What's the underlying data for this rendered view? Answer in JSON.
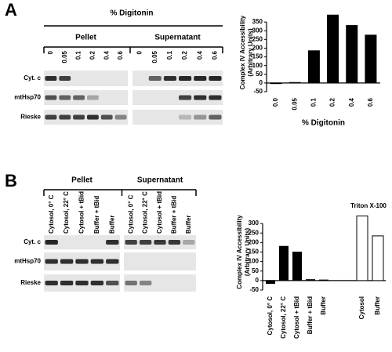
{
  "panel_a": {
    "label": "A",
    "title": "% Digitonin",
    "groups": [
      {
        "name": "Pellet",
        "lanes": [
          "0",
          "0.05",
          "0.1",
          "0.2",
          "0.4",
          "0.6"
        ]
      },
      {
        "name": "Supernatant",
        "lanes": [
          "0",
          "0.05",
          "0.1",
          "0.2",
          "0.4",
          "0.6"
        ]
      }
    ],
    "rows": [
      "Cyt. c",
      "mtHsp70",
      "Rieske"
    ]
  },
  "panel_b": {
    "label": "B",
    "groups": [
      {
        "name": "Pellet",
        "lanes": [
          "Cytosol, 0° C",
          "Cytosol, 22° C",
          "Cytosol + tBid",
          "Buffer + tBid",
          "Buffer"
        ]
      },
      {
        "name": "Supernatant",
        "lanes": [
          "Cytosol, 0° C",
          "Cytosol, 22° C",
          "Cytosol + tBid",
          "Buffer + tBid",
          "Buffer"
        ]
      }
    ],
    "rows": [
      "Cyt. c",
      "mtHsp70",
      "Rieske"
    ]
  },
  "chart_data": [
    {
      "type": "bar",
      "y_label": [
        "Complex IV Accessibility",
        "(Arbitrary Units)"
      ],
      "x_label": "% Digitonin",
      "categories": [
        "0.0",
        "0.05",
        "0.1",
        "0.2",
        "0.4",
        "0.6"
      ],
      "values": [
        0,
        3,
        185,
        390,
        330,
        275
      ],
      "color": "#000000",
      "ylim": [
        -50,
        400
      ],
      "yticks": [
        -50,
        0,
        50,
        100,
        150,
        200,
        250,
        300,
        350
      ]
    },
    {
      "type": "bar",
      "y_label": [
        "Complex IV Accessibility",
        "(Arbitrary Units)"
      ],
      "annotation": "Triton X-100",
      "categories": [
        "Cytosol, 0° C",
        "Cytosol, 22° C",
        "Cytosol + tBid",
        "Buffer + tBid",
        "Buffer",
        "Cytosol",
        "Buffer"
      ],
      "values": [
        -15,
        180,
        150,
        5,
        3,
        340,
        235
      ],
      "colors": [
        "#000000",
        "#000000",
        "#000000",
        "#000000",
        "#000000",
        "#ffffff",
        "#ffffff"
      ],
      "ylim": [
        -50,
        350
      ],
      "yticks": [
        -50,
        0,
        50,
        100,
        150,
        200,
        250,
        300
      ]
    }
  ]
}
